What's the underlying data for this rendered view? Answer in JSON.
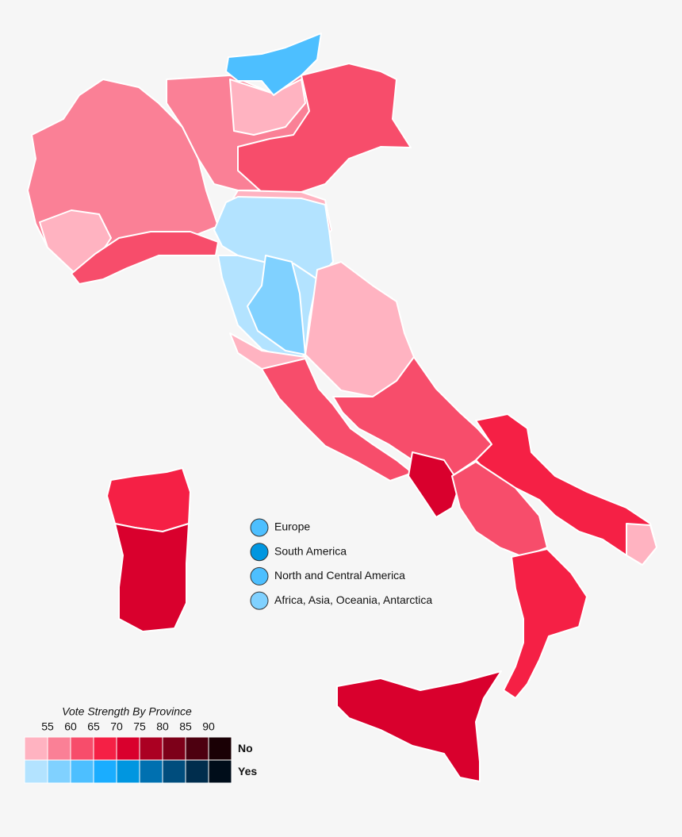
{
  "legend": {
    "title": "Vote Strength By Province",
    "ticks": [
      55,
      60,
      65,
      70,
      75,
      80,
      85,
      90
    ],
    "rows": [
      {
        "label": "No",
        "label_color": "#e8163c",
        "colors": [
          "#ffb3c1",
          "#fa8096",
          "#f74d6b",
          "#f52045",
          "#d9002d",
          "#ab0022",
          "#7d0019",
          "#4d0010",
          "#1a0005"
        ]
      },
      {
        "label": "Yes",
        "label_color": "#1a78b4",
        "colors": [
          "#b3e3ff",
          "#80d1ff",
          "#4dbfff",
          "#1aadff",
          "#0096e0",
          "#0070b0",
          "#004d7d",
          "#002d4d",
          "#000d1a"
        ]
      }
    ]
  },
  "overseas": [
    {
      "label": "Europe",
      "color": "#4dbfff"
    },
    {
      "label": "South America",
      "color": "#0096e0"
    },
    {
      "label": "North and Central America",
      "color": "#4dbfff"
    },
    {
      "label": "Africa, Asia, Oceania, Antarctica",
      "color": "#80d1ff"
    }
  ]
}
